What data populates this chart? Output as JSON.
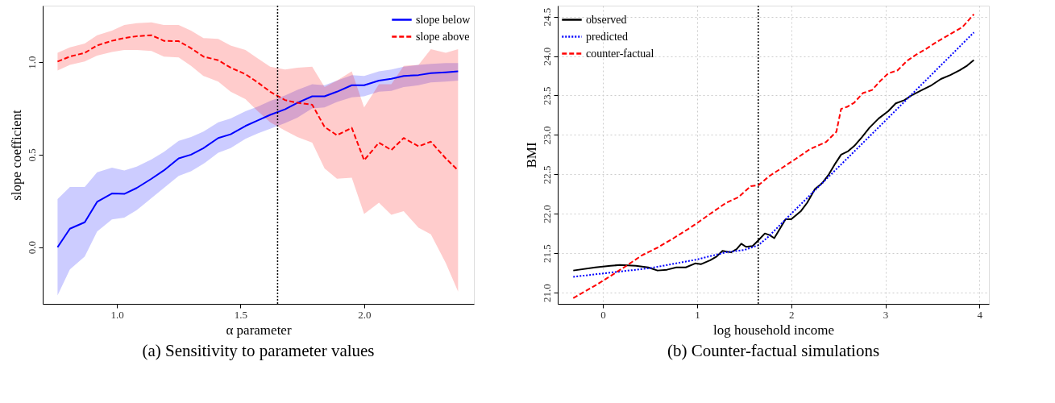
{
  "chart_data": [
    {
      "type": "line",
      "title": "(a) Sensitivity to parameter values",
      "xlabel": "α parameter",
      "ylabel": "slope coefficient",
      "x": [
        0.76,
        0.81,
        0.87,
        0.92,
        0.98,
        1.03,
        1.08,
        1.14,
        1.19,
        1.25,
        1.3,
        1.35,
        1.41,
        1.46,
        1.52,
        1.57,
        1.62,
        1.68,
        1.73,
        1.79,
        1.84,
        1.89,
        1.95,
        2.0,
        2.06,
        2.11,
        2.16,
        2.22,
        2.27,
        2.33,
        2.38
      ],
      "series": [
        {
          "name": "slope below",
          "color": "#0000ff",
          "line_style": "solid",
          "values": [
            0.0,
            0.1,
            0.135,
            0.245,
            0.29,
            0.288,
            0.32,
            0.37,
            0.415,
            0.48,
            0.5,
            0.535,
            0.59,
            0.61,
            0.655,
            0.685,
            0.715,
            0.745,
            0.78,
            0.815,
            0.815,
            0.84,
            0.875,
            0.875,
            0.9,
            0.91,
            0.925,
            0.93,
            0.94,
            0.945,
            0.95
          ],
          "lower": [
            -0.26,
            -0.12,
            -0.05,
            0.085,
            0.15,
            0.16,
            0.2,
            0.265,
            0.32,
            0.385,
            0.41,
            0.45,
            0.51,
            0.535,
            0.585,
            0.615,
            0.64,
            0.67,
            0.7,
            0.75,
            0.755,
            0.785,
            0.81,
            0.815,
            0.84,
            0.845,
            0.865,
            0.875,
            0.89,
            0.895,
            0.9
          ],
          "upper": [
            0.26,
            0.325,
            0.325,
            0.405,
            0.43,
            0.415,
            0.435,
            0.475,
            0.515,
            0.575,
            0.595,
            0.625,
            0.675,
            0.695,
            0.735,
            0.76,
            0.79,
            0.82,
            0.85,
            0.88,
            0.875,
            0.9,
            0.93,
            0.925,
            0.95,
            0.96,
            0.975,
            0.985,
            0.99,
            0.995,
            0.995
          ]
        },
        {
          "name": "slope above",
          "color": "#ff0000",
          "line_style": "dashed",
          "values": [
            1.003,
            1.03,
            1.05,
            1.09,
            1.115,
            1.13,
            1.14,
            1.145,
            1.115,
            1.113,
            1.075,
            1.03,
            1.01,
            0.97,
            0.935,
            0.89,
            0.84,
            0.795,
            0.78,
            0.77,
            0.65,
            0.605,
            0.645,
            0.47,
            0.565,
            0.525,
            0.59,
            0.545,
            0.57,
            0.48,
            0.415
          ],
          "lower": [
            0.955,
            0.985,
            1.003,
            1.035,
            1.055,
            1.065,
            1.065,
            1.06,
            1.03,
            1.025,
            0.98,
            0.925,
            0.895,
            0.84,
            0.8,
            0.735,
            0.675,
            0.63,
            0.595,
            0.565,
            0.425,
            0.37,
            0.375,
            0.18,
            0.24,
            0.175,
            0.195,
            0.105,
            0.07,
            -0.085,
            -0.24
          ],
          "upper": [
            1.05,
            1.08,
            1.1,
            1.145,
            1.17,
            1.2,
            1.21,
            1.215,
            1.2,
            1.2,
            1.17,
            1.13,
            1.125,
            1.09,
            1.065,
            1.02,
            0.975,
            0.96,
            0.97,
            0.975,
            0.865,
            0.9,
            0.95,
            0.755,
            0.88,
            0.88,
            0.98,
            0.985,
            1.07,
            1.05,
            1.07
          ]
        }
      ],
      "xlim": [
        0.7,
        2.444
      ],
      "ylim": [
        -0.306,
        1.305
      ],
      "xticks": [
        {
          "value": 1,
          "label": "1.0"
        },
        1.5,
        {
          "value": 2,
          "label": "2.0"
        }
      ],
      "yticks": [
        {
          "value": 0,
          "label": "0.0"
        },
        0.5,
        {
          "value": 1,
          "label": "1.0"
        }
      ],
      "ref_lines": [
        {
          "axis": "x",
          "value": 1.65,
          "color": "#000000",
          "line_style": "dotted"
        }
      ],
      "legend": "top right",
      "grid": false
    },
    {
      "type": "line",
      "title": "(b) Counter-factual simulations",
      "xlabel": "log household income",
      "ylabel": "BMI",
      "series": [
        {
          "name": "observed",
          "color": "#000000",
          "line_style": "solid",
          "x": [
            -0.315,
            -0.08,
            0.08,
            0.18,
            0.35,
            0.48,
            0.58,
            0.68,
            0.78,
            0.88,
            0.98,
            1.04,
            1.14,
            1.21,
            1.27,
            1.36,
            1.42,
            1.47,
            1.52,
            1.59,
            1.64,
            1.72,
            1.77,
            1.82,
            1.87,
            1.94,
            2.0,
            2.1,
            2.17,
            2.25,
            2.33,
            2.4,
            2.47,
            2.53,
            2.6,
            2.67,
            2.75,
            2.83,
            2.93,
            3.03,
            3.11,
            3.2,
            3.29,
            3.39,
            3.49,
            3.59,
            3.69,
            3.79,
            3.87,
            3.94
          ],
          "values": [
            21.28,
            21.32,
            21.34,
            21.35,
            21.34,
            21.32,
            21.28,
            21.29,
            21.32,
            21.32,
            21.37,
            21.36,
            21.41,
            21.46,
            21.53,
            21.51,
            21.55,
            21.62,
            21.58,
            21.59,
            21.65,
            21.75,
            21.73,
            21.69,
            21.79,
            21.93,
            21.93,
            22.03,
            22.14,
            22.31,
            22.39,
            22.5,
            22.64,
            22.75,
            22.79,
            22.86,
            22.97,
            23.09,
            23.21,
            23.3,
            23.4,
            23.44,
            23.51,
            23.57,
            23.63,
            23.71,
            23.76,
            23.82,
            23.88,
            23.95
          ]
        },
        {
          "name": "predicted",
          "color": "#0000ff",
          "line_style": "dotted",
          "x": [
            -0.315,
            0.5,
            1.0,
            1.3,
            1.5,
            1.65,
            1.75,
            2.0,
            3.0,
            3.94
          ],
          "values": [
            21.2,
            21.31,
            21.42,
            21.51,
            21.54,
            21.6,
            21.7,
            22.0,
            23.18,
            24.3
          ]
        },
        {
          "name": "counter-factual",
          "color": "#ff0000",
          "line_style": "dashed",
          "x": [
            -0.315,
            -0.08,
            0.08,
            0.25,
            0.41,
            0.58,
            0.75,
            0.91,
            1.01,
            1.14,
            1.31,
            1.44,
            1.57,
            1.65,
            1.77,
            1.9,
            2.04,
            2.2,
            2.37,
            2.48,
            2.53,
            2.6,
            2.67,
            2.76,
            2.86,
            2.95,
            3.03,
            3.13,
            3.23,
            3.33,
            3.43,
            3.56,
            3.69,
            3.82,
            3.94
          ],
          "values": [
            20.93,
            21.09,
            21.21,
            21.34,
            21.47,
            21.57,
            21.69,
            21.81,
            21.89,
            22.0,
            22.14,
            22.21,
            22.35,
            22.36,
            22.48,
            22.58,
            22.69,
            22.82,
            22.91,
            23.04,
            23.33,
            23.36,
            23.41,
            23.53,
            23.57,
            23.69,
            23.78,
            23.82,
            23.94,
            24.02,
            24.09,
            24.19,
            24.28,
            24.37,
            24.53
          ]
        }
      ],
      "xlim": [
        -0.48,
        4.1
      ],
      "ylim": [
        20.857,
        24.64
      ],
      "xticks": [
        0,
        1,
        2,
        3,
        4
      ],
      "yticks": [
        {
          "value": 21,
          "label": "21.0"
        },
        21.5,
        {
          "value": 22,
          "label": "22.0"
        },
        22.5,
        {
          "value": 23,
          "label": "23.0"
        },
        23.5,
        {
          "value": 24,
          "label": "24.0"
        },
        24.5
      ],
      "ref_lines": [
        {
          "axis": "x",
          "value": 1.65,
          "color": "#000000",
          "line_style": "dotted"
        }
      ],
      "legend": "top left",
      "grid": true
    }
  ]
}
